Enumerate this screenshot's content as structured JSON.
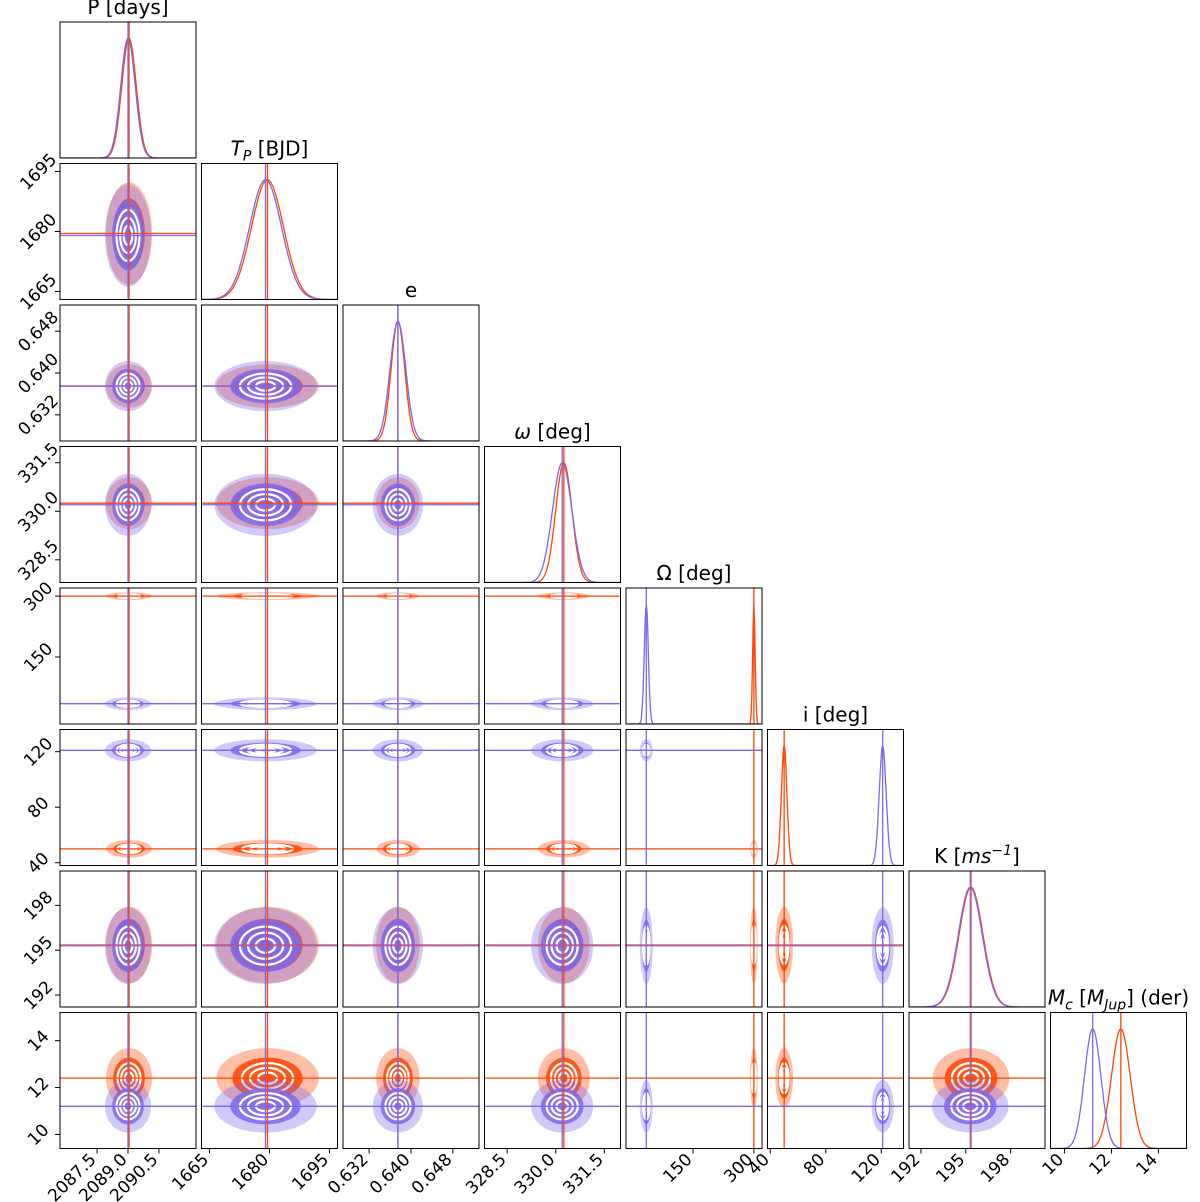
{
  "chart_data": {
    "type": "corner",
    "params": [
      {
        "label": [
          {
            "text": "P [days]"
          }
        ],
        "lim": [
          2085.7,
          2092.3
        ],
        "ticks": [
          2087.5,
          {
            "value": 2089,
            "label": "2089.0"
          },
          2090.5
        ]
      },
      {
        "label": [
          {
            "text": "T",
            "italic": true
          },
          {
            "text": "P",
            "italic": true,
            "shift": "sub"
          },
          {
            "text": " [BJD]"
          }
        ],
        "lim": [
          1663,
          1697
        ],
        "ticks": [
          1665,
          1680,
          1695
        ]
      },
      {
        "label": [
          {
            "text": "e"
          }
        ],
        "lim": [
          0.627,
          0.653
        ],
        "ticks": [
          0.632,
          {
            "value": 0.64,
            "label": "0.640"
          },
          0.648
        ]
      },
      {
        "label": [
          {
            "text": "ω",
            "italic": true
          },
          {
            "text": " [deg]"
          }
        ],
        "lim": [
          327.8,
          332
        ],
        "ticks": [
          328.5,
          {
            "value": 330,
            "label": "330.0"
          },
          331.5
        ]
      },
      {
        "label": [
          {
            "text": "Ω [deg]"
          }
        ],
        "lim": [
          -15,
          320
        ],
        "ticks": [
          150,
          300
        ]
      },
      {
        "label": [
          {
            "text": "i [deg]"
          }
        ],
        "lim": [
          38,
          136
        ],
        "ticks": [
          40,
          80,
          120
        ]
      },
      {
        "label": [
          {
            "text": "K ["
          },
          {
            "text": "ms",
            "italic": true
          },
          {
            "text": "−1",
            "italic": true,
            "shift": "super"
          },
          {
            "text": "]"
          }
        ],
        "lim": [
          191.2,
          200.3
        ],
        "ticks": [
          192,
          195,
          198
        ]
      },
      {
        "label": [
          {
            "text": "M",
            "italic": true
          },
          {
            "text": "c",
            "italic": true,
            "shift": "sub"
          },
          {
            "text": " ["
          },
          {
            "text": "M",
            "italic": true
          },
          {
            "text": "Jup",
            "italic": true,
            "shift": "sub"
          },
          {
            "text": "] (der)"
          }
        ],
        "lim": [
          9.4,
          15.2
        ],
        "ticks": [
          10,
          12,
          14
        ]
      }
    ],
    "series": [
      {
        "color": "#ff4500",
        "medians": [
          2089.05,
          1679.5,
          0.6375,
          330.25,
          300,
          50,
          195.35,
          12.4
        ],
        "sigmas": [
          0.35,
          4,
          0.0013,
          0.25,
          3,
          2,
          0.8,
          0.4
        ]
      },
      {
        "color": "#7b68ee",
        "medians": [
          2089.0,
          1679,
          0.6375,
          330.2,
          35,
          121,
          195.3,
          11.2
        ],
        "sigmas": [
          0.35,
          4,
          0.0015,
          0.3,
          5,
          2.5,
          0.8,
          0.35
        ]
      }
    ]
  }
}
